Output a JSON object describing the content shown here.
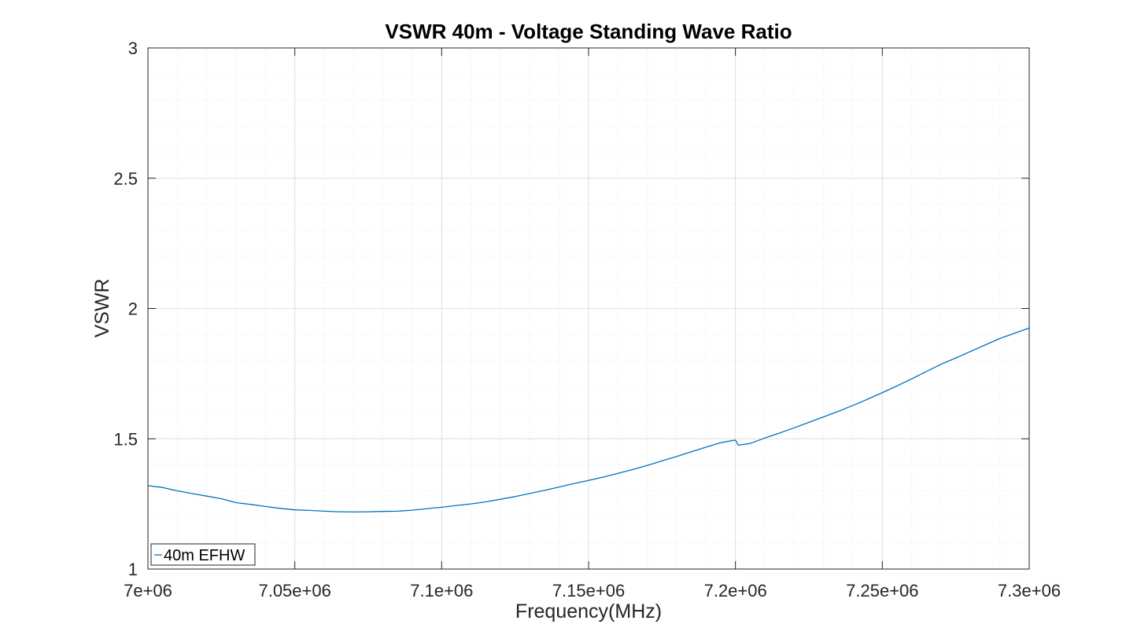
{
  "chart_data": {
    "type": "line",
    "title": "VSWR 40m - Voltage Standing Wave Ratio",
    "xlabel": "Frequency(MHz)",
    "ylabel": "VSWR",
    "xlim": [
      7000000,
      7300000
    ],
    "ylim": [
      1,
      3
    ],
    "x_ticks": [
      7000000,
      7050000,
      7100000,
      7150000,
      7200000,
      7250000,
      7300000
    ],
    "x_tick_labels": [
      "7e+06",
      "7.05e+06",
      "7.1e+06",
      "7.15e+06",
      "7.2e+06",
      "7.25e+06",
      "7.3e+06"
    ],
    "y_ticks": [
      1,
      1.5,
      2,
      2.5,
      3
    ],
    "y_tick_labels": [
      "1",
      "1.5",
      "2",
      "2.5",
      "3"
    ],
    "grid": true,
    "minor_grid": true,
    "legend_position": "bottom-left",
    "series": [
      {
        "name": "40m EFHW",
        "color": "#0072bd",
        "x": [
          7000000,
          7005000,
          7010000,
          7015000,
          7020000,
          7025000,
          7030000,
          7035000,
          7040000,
          7045000,
          7050000,
          7055000,
          7060000,
          7065000,
          7070000,
          7075000,
          7080000,
          7085000,
          7090000,
          7095000,
          7100000,
          7105000,
          7110000,
          7115000,
          7120000,
          7125000,
          7130000,
          7135000,
          7140000,
          7145000,
          7150000,
          7155000,
          7160000,
          7165000,
          7170000,
          7175000,
          7180000,
          7185000,
          7190000,
          7195000,
          7200000,
          7201000,
          7205000,
          7210000,
          7215000,
          7220000,
          7225000,
          7230000,
          7235000,
          7240000,
          7245000,
          7250000,
          7255000,
          7260000,
          7265000,
          7270000,
          7275000,
          7280000,
          7285000,
          7290000,
          7295000,
          7300000
        ],
        "values": [
          1.32,
          1.313,
          1.3,
          1.29,
          1.28,
          1.27,
          1.255,
          1.248,
          1.24,
          1.233,
          1.227,
          1.225,
          1.222,
          1.22,
          1.219,
          1.22,
          1.221,
          1.222,
          1.226,
          1.232,
          1.237,
          1.244,
          1.25,
          1.258,
          1.268,
          1.278,
          1.29,
          1.302,
          1.315,
          1.328,
          1.34,
          1.353,
          1.367,
          1.382,
          1.398,
          1.415,
          1.432,
          1.45,
          1.468,
          1.485,
          1.495,
          1.475,
          1.482,
          1.503,
          1.522,
          1.542,
          1.563,
          1.584,
          1.605,
          1.628,
          1.652,
          1.677,
          1.703,
          1.73,
          1.758,
          1.786,
          1.81,
          1.835,
          1.86,
          1.885,
          1.905,
          1.925
        ]
      }
    ]
  }
}
